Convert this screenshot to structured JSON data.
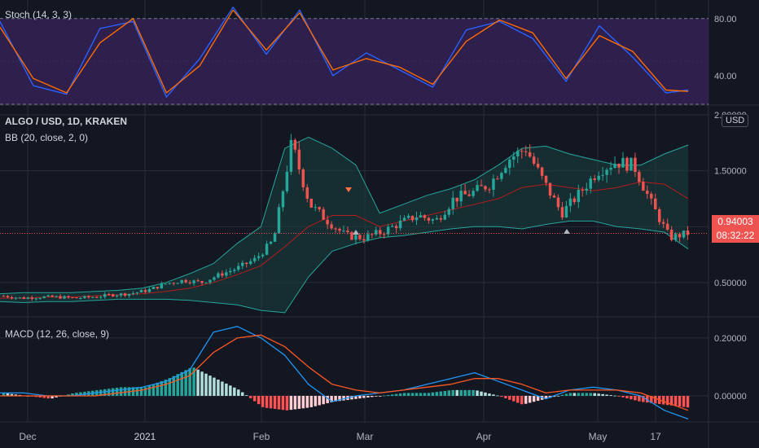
{
  "stoch_pane": {
    "legend": "Stoch (14, 3, 3)"
  },
  "price_pane": {
    "legend_title": "ALGO / USD, 1D, KRAKEN",
    "legend_bb": "BB (20, close, 2, 0)"
  },
  "macd_pane": {
    "legend": "MACD (12, 26, close, 9)"
  },
  "currency_badge": "USD",
  "last_price": {
    "value": "0.94003",
    "countdown": "08:32:22"
  },
  "colors": {
    "background": "#131722",
    "grid": "#2a2e39",
    "up": "#26a69a",
    "down": "#ef5350",
    "stoch_band": "#2e1f4d",
    "stoch_k": "#2962ff",
    "stoch_d": "#ff6d00",
    "bb_line": "#26a69a",
    "bb_fill": "#19403e",
    "bb_basis": "#b71c1c",
    "macd_line": "#2196f3",
    "signal_line": "#ff5722",
    "hist_up_strong": "#26a69a",
    "hist_up_weak": "#b2dfdb",
    "hist_down_strong": "#ff5252",
    "hist_down_weak": "#ffcdd2"
  },
  "chart_data": [
    {
      "type": "line",
      "pane": "stochastic",
      "ylim": [
        20,
        93
      ],
      "y_ticks": [
        "80.00",
        "40.00"
      ],
      "band": [
        20,
        80
      ],
      "x": [
        0,
        6,
        12,
        18,
        24,
        30,
        36,
        42,
        48,
        54,
        60,
        66,
        72,
        78,
        84,
        90,
        96,
        102,
        108,
        114,
        120,
        124
      ],
      "series": [
        {
          "name": "%K",
          "values": [
            78,
            33,
            27,
            73,
            78,
            25,
            52,
            88,
            55,
            86,
            40,
            56,
            44,
            32,
            72,
            78,
            66,
            36,
            75,
            53,
            28,
            30
          ]
        },
        {
          "name": "%D",
          "values": [
            74,
            38,
            28,
            63,
            80,
            28,
            47,
            86,
            58,
            84,
            44,
            52,
            46,
            34,
            64,
            79,
            70,
            38,
            68,
            57,
            30,
            29
          ]
        }
      ]
    },
    {
      "type": "candlestick",
      "pane": "price",
      "title": "ALGO / USD, 1D, KRAKEN",
      "ylim": [
        0.2,
        2.08
      ],
      "y_ticks": [
        "2.00000",
        "1.50000",
        "1.00000",
        "0.50000"
      ],
      "x_ticks": [
        "Dec",
        "2021",
        "Feb",
        "Mar",
        "Apr",
        "May",
        "17"
      ],
      "last_price": 0.94003,
      "price_series": [
        0.38,
        0.36,
        0.37,
        0.37,
        0.36,
        0.37,
        0.39,
        0.4,
        0.43,
        0.49,
        0.52,
        0.5,
        0.57,
        0.63,
        0.71,
        0.88,
        1.75,
        1.2,
        1.05,
        0.92,
        0.9,
        0.95,
        1.03,
        1.1,
        1.05,
        1.25,
        1.3,
        1.38,
        1.6,
        1.7,
        1.4,
        1.12,
        1.3,
        1.5,
        1.58,
        1.55,
        1.2,
        0.9,
        0.94
      ],
      "bb": {
        "upper": [
          0.4,
          0.41,
          0.41,
          0.41,
          0.42,
          0.43,
          0.45,
          0.5,
          0.58,
          0.67,
          0.85,
          1.0,
          1.7,
          1.8,
          1.7,
          1.55,
          1.12,
          1.2,
          1.28,
          1.34,
          1.42,
          1.55,
          1.7,
          1.72,
          1.65,
          1.6,
          1.55,
          1.55,
          1.65,
          1.73
        ],
        "basis": [
          0.36,
          0.36,
          0.37,
          0.37,
          0.38,
          0.39,
          0.4,
          0.42,
          0.45,
          0.5,
          0.57,
          0.65,
          0.82,
          1.0,
          1.1,
          1.1,
          1.0,
          1.05,
          1.1,
          1.15,
          1.2,
          1.25,
          1.35,
          1.38,
          1.35,
          1.32,
          1.35,
          1.4,
          1.38,
          1.25
        ],
        "lower": [
          0.33,
          0.32,
          0.33,
          0.33,
          0.34,
          0.35,
          0.35,
          0.35,
          0.34,
          0.32,
          0.3,
          0.25,
          0.23,
          0.55,
          0.78,
          0.85,
          0.9,
          0.92,
          0.95,
          0.98,
          1.0,
          1.0,
          0.98,
          1.02,
          1.05,
          1.05,
          1.0,
          0.98,
          0.95,
          0.8
        ]
      }
    },
    {
      "type": "bar",
      "pane": "macd",
      "ylim": [
        -0.09,
        0.27
      ],
      "y_ticks": [
        "0.20000",
        "0.00000"
      ],
      "series": [
        {
          "name": "MACD",
          "values": [
            0.01,
            0.01,
            0.0,
            0.0,
            0.01,
            0.02,
            0.03,
            0.05,
            0.09,
            0.22,
            0.24,
            0.2,
            0.14,
            0.04,
            -0.02,
            0.0,
            0.01,
            0.02,
            0.04,
            0.06,
            0.08,
            0.05,
            0.02,
            -0.01,
            0.02,
            0.03,
            0.02,
            0.0,
            -0.05,
            -0.08
          ]
        },
        {
          "name": "Signal",
          "values": [
            0.0,
            0.0,
            0.0,
            0.0,
            0.0,
            0.01,
            0.02,
            0.04,
            0.07,
            0.15,
            0.2,
            0.21,
            0.17,
            0.1,
            0.04,
            0.02,
            0.01,
            0.02,
            0.03,
            0.04,
            0.06,
            0.06,
            0.04,
            0.01,
            0.02,
            0.02,
            0.02,
            0.01,
            -0.02,
            -0.05
          ]
        },
        {
          "name": "Histogram",
          "values": [
            0.01,
            0.0,
            -0.01,
            0.01,
            0.02,
            0.03,
            0.03,
            0.06,
            0.1,
            0.06,
            0.02,
            -0.04,
            -0.05,
            -0.04,
            -0.02,
            -0.01,
            0.0,
            0.01,
            0.01,
            0.02,
            0.02,
            0.0,
            -0.03,
            -0.01,
            0.01,
            0.01,
            0.0,
            -0.02,
            -0.03,
            -0.04
          ]
        }
      ]
    }
  ]
}
